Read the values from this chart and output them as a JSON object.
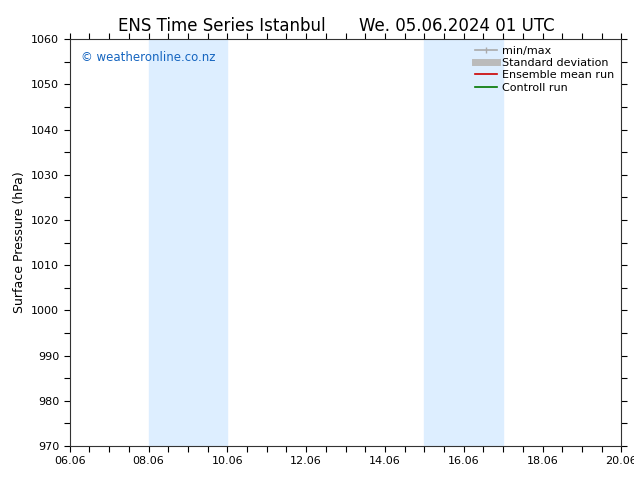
{
  "title": "ENS Time Series Istanbul",
  "title2": "We. 05.06.2024 01 UTC",
  "ylabel": "Surface Pressure (hPa)",
  "ylim": [
    970,
    1060
  ],
  "yticks": [
    970,
    980,
    990,
    1000,
    1010,
    1020,
    1030,
    1040,
    1050,
    1060
  ],
  "xlabel_dates": [
    "06.06",
    "08.06",
    "10.06",
    "12.06",
    "14.06",
    "16.06",
    "18.06",
    "20.06"
  ],
  "x_positions": [
    0,
    2,
    4,
    6,
    8,
    10,
    12,
    14
  ],
  "xlim": [
    0,
    14
  ],
  "shaded_bands": [
    {
      "x_start": 2,
      "x_end": 4,
      "color": "#ddeeff"
    },
    {
      "x_start": 9,
      "x_end": 11,
      "color": "#ddeeff"
    }
  ],
  "background_color": "#ffffff",
  "plot_bg_color": "#ffffff",
  "watermark_text": "© weatheronline.co.nz",
  "watermark_color": "#1565c0",
  "legend_items": [
    {
      "label": "min/max",
      "color": "#aaaaaa",
      "lw": 1.2
    },
    {
      "label": "Standard deviation",
      "color": "#bbbbbb",
      "lw": 5
    },
    {
      "label": "Ensemble mean run",
      "color": "#cc0000",
      "lw": 1.2
    },
    {
      "label": "Controll run",
      "color": "#007700",
      "lw": 1.2
    }
  ],
  "title_fontsize": 12,
  "axis_label_fontsize": 9,
  "tick_fontsize": 8,
  "legend_fontsize": 8
}
